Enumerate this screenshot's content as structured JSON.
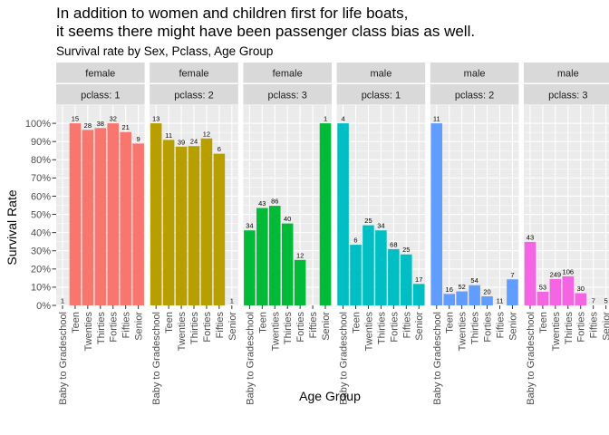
{
  "title_line1": "In addition to women and children first for life boats,",
  "title_line2": "it seems there might have been passenger class bias as well.",
  "subtitle": "Survival rate by Sex, Pclass, Age Group",
  "chart_data": {
    "type": "bar",
    "xlabel": "Age Group",
    "ylabel": "Survival Rate",
    "ylim": [
      0,
      1.1
    ],
    "y_ticks": [
      "0%",
      "10%",
      "20%",
      "30%",
      "40%",
      "50%",
      "60%",
      "70%",
      "80%",
      "90%",
      "100%"
    ],
    "categories": [
      "Baby to Gradeschool",
      "Teen",
      "Twenties",
      "Thirties",
      "Forties",
      "Fifties",
      "Senior"
    ],
    "grid": true,
    "legend": "none",
    "facets": [
      {
        "sex": "female",
        "pclass": "pclass: 1",
        "color": "#F8766D",
        "values": [
          0,
          1.0,
          0.964,
          0.974,
          1.0,
          0.952,
          0.889
        ],
        "labels": [
          "1",
          "15",
          "28",
          "38",
          "32",
          "21",
          "9"
        ]
      },
      {
        "sex": "female",
        "pclass": "pclass: 2",
        "color": "#B79F00",
        "values": [
          1.0,
          0.909,
          0.872,
          0.875,
          0.917,
          0.833,
          0
        ],
        "labels": [
          "13",
          "11",
          "39",
          "24",
          "12",
          "6",
          "1"
        ]
      },
      {
        "sex": "female",
        "pclass": "pclass: 3",
        "color": "#00BA38",
        "values": [
          0.412,
          0.535,
          0.547,
          0.45,
          0.25,
          0,
          1.0
        ],
        "labels": [
          "34",
          "43",
          "86",
          "40",
          "12",
          "",
          "1"
        ]
      },
      {
        "sex": "male",
        "pclass": "pclass: 1",
        "color": "#00BFC4",
        "values": [
          1.0,
          0.333,
          0.44,
          0.412,
          0.309,
          0.28,
          0.118
        ],
        "labels": [
          "4",
          "6",
          "25",
          "34",
          "68",
          "25",
          "17"
        ]
      },
      {
        "sex": "male",
        "pclass": "pclass: 2",
        "color": "#619CFF",
        "values": [
          1.0,
          0.063,
          0.077,
          0.111,
          0.05,
          0,
          0.143
        ],
        "labels": [
          "11",
          "16",
          "52",
          "54",
          "20",
          "11",
          "7"
        ]
      },
      {
        "sex": "male",
        "pclass": "pclass: 3",
        "color": "#F564E3",
        "values": [
          0.349,
          0.075,
          0.145,
          0.16,
          0.067,
          0,
          0
        ],
        "labels": [
          "43",
          "53",
          "249",
          "106",
          "30",
          "7",
          "5"
        ]
      }
    ]
  }
}
